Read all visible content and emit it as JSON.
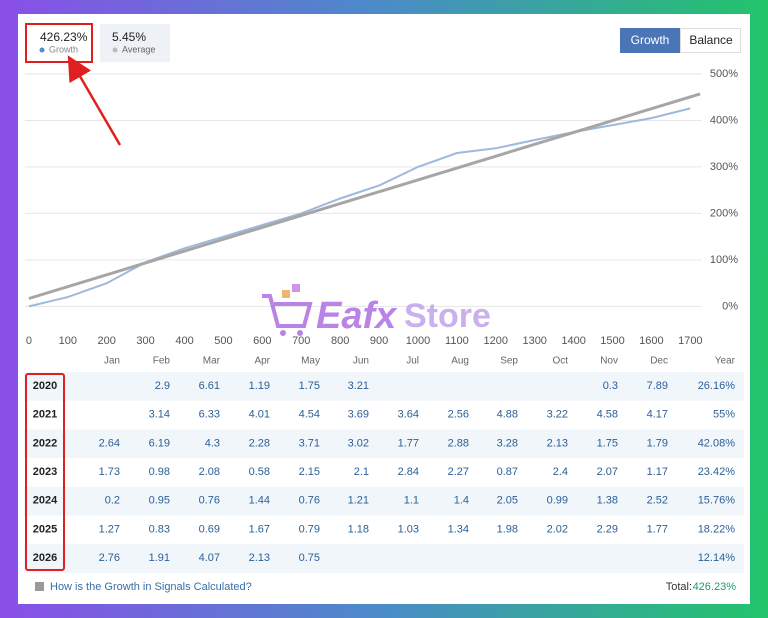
{
  "stats": [
    {
      "value": "426.23%",
      "label": "Growth"
    },
    {
      "value": "5.45%",
      "label": "Average"
    }
  ],
  "tabs": [
    "Growth",
    "Balance"
  ],
  "watermark": [
    "Eafx",
    "Store"
  ],
  "chart_data": {
    "type": "line",
    "x": [
      0,
      100,
      200,
      300,
      400,
      500,
      600,
      700,
      800,
      900,
      1000,
      1100,
      1200,
      1300,
      1400,
      1500,
      1600,
      1700
    ],
    "series": [
      {
        "name": "Growth",
        "color": "#9fb9dc",
        "values": [
          0,
          20,
          50,
          95,
          125,
          150,
          175,
          200,
          232,
          260,
          300,
          330,
          340,
          358,
          375,
          390,
          405,
          426
        ]
      }
    ],
    "trend": {
      "color": "#a6a6a6",
      "x": [
        0,
        1725
      ],
      "values": [
        17,
        457
      ]
    },
    "xlim": [
      -10,
      1730
    ],
    "ylim": [
      -40,
      530
    ],
    "xticks": [
      0,
      100,
      200,
      300,
      400,
      500,
      600,
      700,
      800,
      900,
      1000,
      1100,
      1200,
      1300,
      1400,
      1500,
      1600,
      1700
    ],
    "yticks": [
      {
        "value": 0,
        "label": "0%"
      },
      {
        "value": 100,
        "label": "100%"
      },
      {
        "value": 200,
        "label": "200%"
      },
      {
        "value": 300,
        "label": "300%"
      },
      {
        "value": 400,
        "label": "400%"
      },
      {
        "value": 500,
        "label": "500%"
      }
    ],
    "grid": true
  },
  "table": {
    "header": [
      "Jan",
      "Feb",
      "Mar",
      "Apr",
      "May",
      "Jun",
      "Jul",
      "Aug",
      "Sep",
      "Oct",
      "Nov",
      "Dec",
      "Year"
    ],
    "rows": [
      {
        "year": "2020",
        "cells": [
          null,
          2.9,
          6.61,
          1.19,
          1.75,
          3.21,
          null,
          null,
          null,
          null,
          0.3,
          7.89,
          "26.16%"
        ]
      },
      {
        "year": "2021",
        "cells": [
          null,
          3.14,
          6.33,
          4.01,
          4.54,
          3.69,
          3.64,
          2.56,
          4.88,
          3.22,
          4.58,
          4.17,
          "55%"
        ]
      },
      {
        "year": "2022",
        "cells": [
          2.64,
          6.19,
          4.3,
          2.28,
          3.71,
          3.02,
          1.77,
          2.88,
          3.28,
          2.13,
          1.75,
          1.79,
          "42.08%"
        ]
      },
      {
        "year": "2023",
        "cells": [
          1.73,
          0.98,
          2.08,
          0.58,
          2.15,
          2.1,
          2.84,
          2.27,
          0.87,
          2.4,
          2.07,
          1.17,
          "23.42%"
        ]
      },
      {
        "year": "2024",
        "cells": [
          0.2,
          0.95,
          0.76,
          1.44,
          0.76,
          1.21,
          1.1,
          1.4,
          2.05,
          0.99,
          1.38,
          2.52,
          "15.76%"
        ]
      },
      {
        "year": "2025",
        "cells": [
          1.27,
          0.83,
          0.69,
          1.67,
          0.79,
          1.18,
          1.03,
          1.34,
          1.98,
          2.02,
          2.29,
          1.77,
          "18.22%"
        ]
      },
      {
        "year": "2026",
        "cells": [
          2.76,
          1.91,
          4.07,
          2.13,
          0.75,
          null,
          null,
          null,
          null,
          null,
          null,
          null,
          "12.14%"
        ]
      }
    ]
  },
  "footer": {
    "link": "How is the Growth in Signals Calculated?",
    "total_label": "Total:",
    "total_value": "426.23%"
  }
}
